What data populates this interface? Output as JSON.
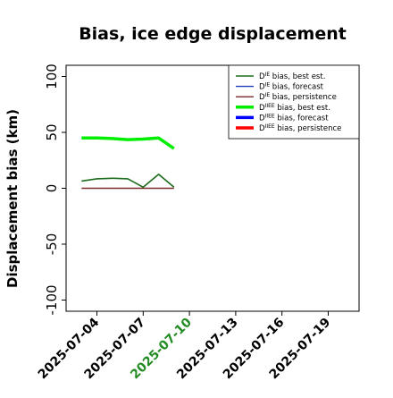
{
  "chart_data": {
    "type": "line",
    "title": "Bias, ice edge displacement",
    "xlabel": "",
    "ylabel": "Displacement bias (km)",
    "ylim": [
      -110,
      110
    ],
    "xlim": [
      "2025-07-02",
      "2025-07-21"
    ],
    "yticks": [
      100,
      50,
      0,
      -50,
      -100
    ],
    "xticks": [
      {
        "date": "2025-07-04",
        "label": "2025-07-04",
        "color": "#000000"
      },
      {
        "date": "2025-07-07",
        "label": "2025-07-07",
        "color": "#000000"
      },
      {
        "date": "2025-07-10",
        "label": "2025-07-10",
        "color": "#228b22"
      },
      {
        "date": "2025-07-13",
        "label": "2025-07-13",
        "color": "#000000"
      },
      {
        "date": "2025-07-16",
        "label": "2025-07-16",
        "color": "#000000"
      },
      {
        "date": "2025-07-19",
        "label": "2025-07-19",
        "color": "#000000"
      }
    ],
    "grid": false,
    "legend_position": "top-right",
    "series": [
      {
        "name": "bias, best est.",
        "legend_main": "D",
        "legend_sup": "IE",
        "legend_rest": " bias, best est.",
        "color": "#1a6b1a",
        "thick": false,
        "x": [
          "2025-07-03",
          "2025-07-04",
          "2025-07-05",
          "2025-07-06",
          "2025-07-07",
          "2025-07-08",
          "2025-07-09"
        ],
        "y": [
          6.5,
          8.5,
          9,
          8.5,
          1,
          12.5,
          1
        ]
      },
      {
        "name": "bias, forecast",
        "legend_main": "D",
        "legend_sup": "IE",
        "legend_rest": " bias, forecast",
        "color": "#1f3fbf",
        "thick": false,
        "x": [],
        "y": []
      },
      {
        "name": "bias, persistence",
        "legend_main": "D",
        "legend_sup": "IE",
        "legend_rest": " bias, persistence",
        "color": "#7a2a2a",
        "thick": false,
        "x": [
          "2025-07-03",
          "2025-07-04",
          "2025-07-05",
          "2025-07-06",
          "2025-07-07",
          "2025-07-08",
          "2025-07-09"
        ],
        "y": [
          0,
          0,
          0,
          0,
          0,
          0,
          0
        ]
      },
      {
        "name": "bias, best est. (IIEE)",
        "legend_main": "D",
        "legend_sup": "IIEE",
        "legend_rest": " bias, best est.",
        "color": "#00ee00",
        "thick": true,
        "x": [
          "2025-07-03",
          "2025-07-04",
          "2025-07-05",
          "2025-07-06",
          "2025-07-07",
          "2025-07-08",
          "2025-07-09"
        ],
        "y": [
          45,
          45,
          44.5,
          43.5,
          44,
          45,
          35.5
        ]
      },
      {
        "name": "bias, forecast (IIEE)",
        "legend_main": "D",
        "legend_sup": "IIEE",
        "legend_rest": " bias, forecast",
        "color": "#0000ff",
        "thick": true,
        "x": [],
        "y": []
      },
      {
        "name": "bias, persistence (IIEE)",
        "legend_main": "D",
        "legend_sup": "IIEE",
        "legend_rest": " bias, persistence",
        "color": "#ff0000",
        "thick": true,
        "x": [],
        "y": []
      }
    ]
  }
}
